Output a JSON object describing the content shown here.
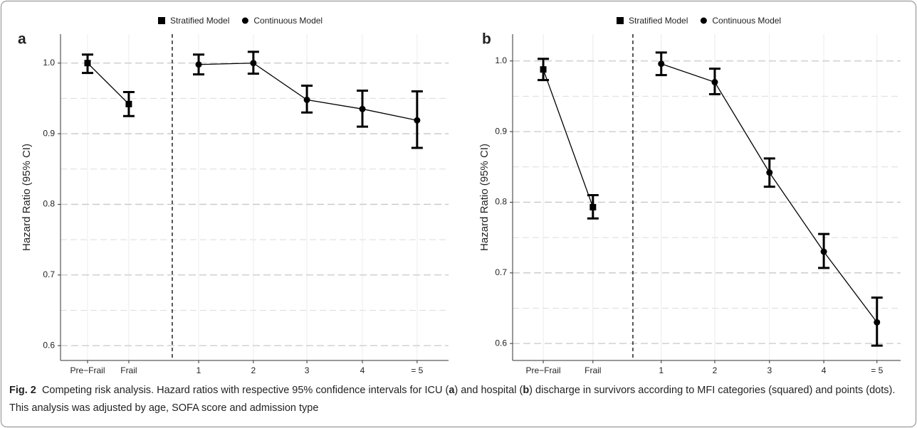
{
  "chart_data": [
    {
      "type": "errorbar",
      "panel": "a",
      "ylabel": "Hazard Ratio (95% CI)",
      "categories": [
        "Pre−Frail",
        "Frail",
        "1",
        "2",
        "3",
        "4",
        "= 5"
      ],
      "ylim": [
        0.579,
        1.041
      ],
      "yticks": [
        0.6,
        0.7,
        0.8,
        0.9,
        {
          "value": 1,
          "label": "1.0"
        }
      ],
      "yminor": [
        0.65,
        0.75,
        0.85,
        0.95
      ],
      "grid": true,
      "series": [
        {
          "name": "Stratified Model",
          "color": "#000000",
          "marker": "square",
          "values": [
            1.0,
            0.942,
            null,
            null,
            null,
            null,
            null
          ],
          "lower": [
            0.986,
            0.925,
            null,
            null,
            null,
            null,
            null
          ],
          "upper": [
            1.012,
            0.959,
            null,
            null,
            null,
            null,
            null
          ]
        },
        {
          "name": "Continuous Model",
          "color": "#000000",
          "marker": "circle",
          "values": [
            null,
            null,
            0.998,
            1.0,
            0.948,
            0.935,
            0.919
          ],
          "lower": [
            null,
            null,
            0.984,
            0.985,
            0.93,
            0.91,
            0.88
          ],
          "upper": [
            null,
            null,
            1.012,
            1.016,
            0.968,
            0.961,
            0.96
          ]
        }
      ]
    },
    {
      "type": "errorbar",
      "panel": "b",
      "ylabel": "Hazard Ratio (95% CI)",
      "categories": [
        "Pre−Frail",
        "Frail",
        "1",
        "2",
        "3",
        "4",
        "= 5"
      ],
      "ylim": [
        0.576,
        1.038
      ],
      "yticks": [
        0.6,
        0.7,
        0.8,
        0.9,
        {
          "value": 1,
          "label": "1.0"
        }
      ],
      "yminor": [
        0.65,
        0.75,
        0.85,
        0.95
      ],
      "grid": true,
      "series": [
        {
          "name": "Stratified Model",
          "color": "#000000",
          "marker": "square",
          "values": [
            0.988,
            0.793,
            null,
            null,
            null,
            null,
            null
          ],
          "lower": [
            0.973,
            0.777,
            null,
            null,
            null,
            null,
            null
          ],
          "upper": [
            1.003,
            0.81,
            null,
            null,
            null,
            null,
            null
          ]
        },
        {
          "name": "Continuous Model",
          "color": "#000000",
          "marker": "circle",
          "values": [
            null,
            null,
            0.996,
            0.97,
            0.842,
            0.73,
            0.63
          ],
          "lower": [
            null,
            null,
            0.98,
            0.953,
            0.822,
            0.707,
            0.597
          ],
          "upper": [
            null,
            null,
            1.012,
            0.989,
            0.862,
            0.755,
            0.665
          ]
        }
      ]
    }
  ],
  "caption": {
    "label": "Fig. 2",
    "parts": [
      "Competing risk analysis. Hazard ratios with respective 95% confidence intervals for ICU (",
      "a",
      ") and hospital (",
      "b",
      ") discharge in survivors according to MFI categories (squared) and points (dots). This analysis was adjusted by age, SOFA score and admission type"
    ]
  }
}
